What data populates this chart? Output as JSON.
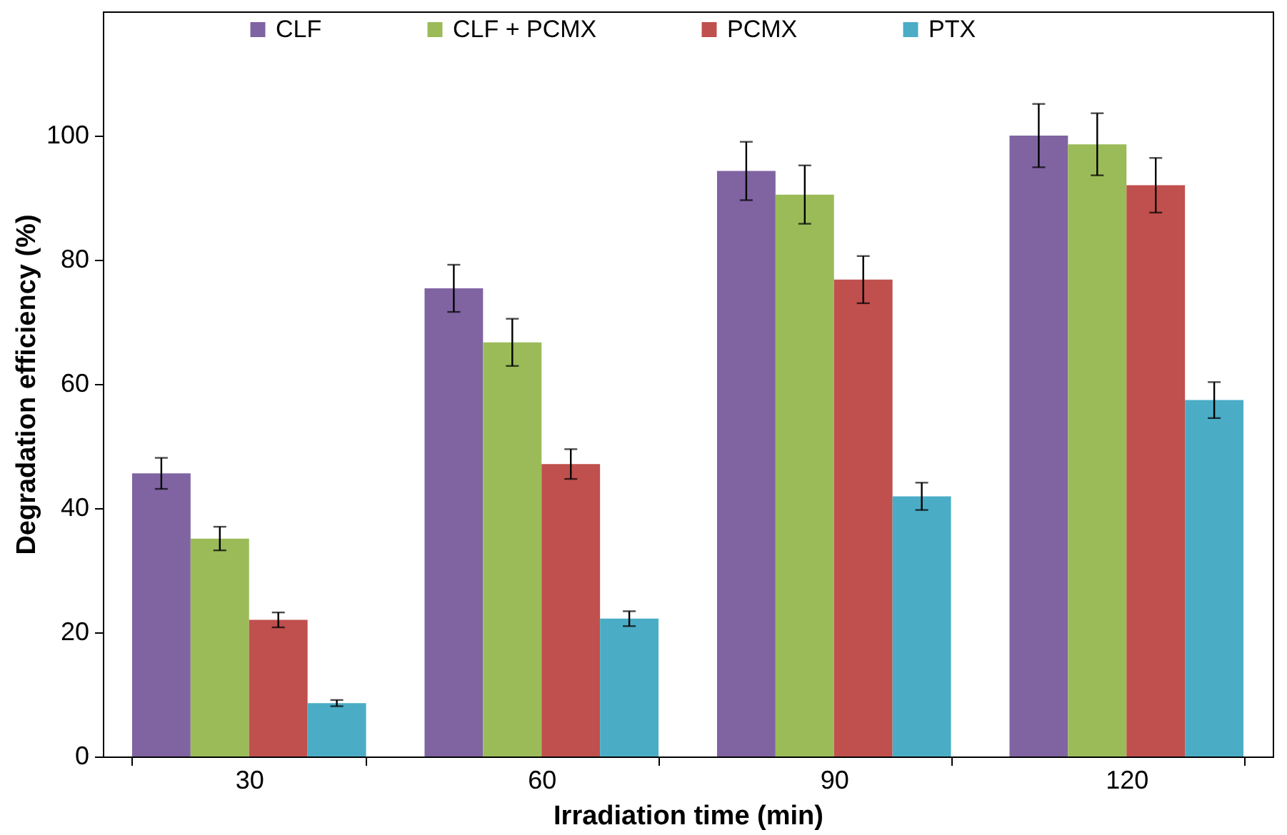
{
  "chart_data": {
    "type": "bar",
    "xlabel": "Irradiation time (min)",
    "ylabel": "Degradation efficiency (%)",
    "categories": [
      "30",
      "60",
      "90",
      "120"
    ],
    "series": [
      {
        "name": "CLF",
        "color": "#8064a2",
        "values": [
          45.6,
          75.4,
          94.3,
          100
        ],
        "errors": [
          2.5,
          3.8,
          4.7,
          5.1
        ]
      },
      {
        "name": "CLF + PCMX",
        "color": "#9bbb59",
        "values": [
          35.1,
          66.7,
          90.5,
          98.6
        ],
        "errors": [
          1.9,
          3.8,
          4.7,
          5
        ]
      },
      {
        "name": "PCMX",
        "color": "#c0504d",
        "values": [
          22,
          47.1,
          76.8,
          92
        ],
        "errors": [
          1.2,
          2.4,
          3.8,
          4.4
        ]
      },
      {
        "name": "PTX",
        "color": "#4bacc6",
        "values": [
          8.6,
          22.2,
          41.9,
          57.4
        ],
        "errors": [
          0.5,
          1.2,
          2.2,
          2.9
        ]
      }
    ],
    "ylim": [
      0,
      120
    ],
    "yticks": [
      0,
      20,
      40,
      60,
      80,
      100
    ],
    "legend": "top"
  }
}
